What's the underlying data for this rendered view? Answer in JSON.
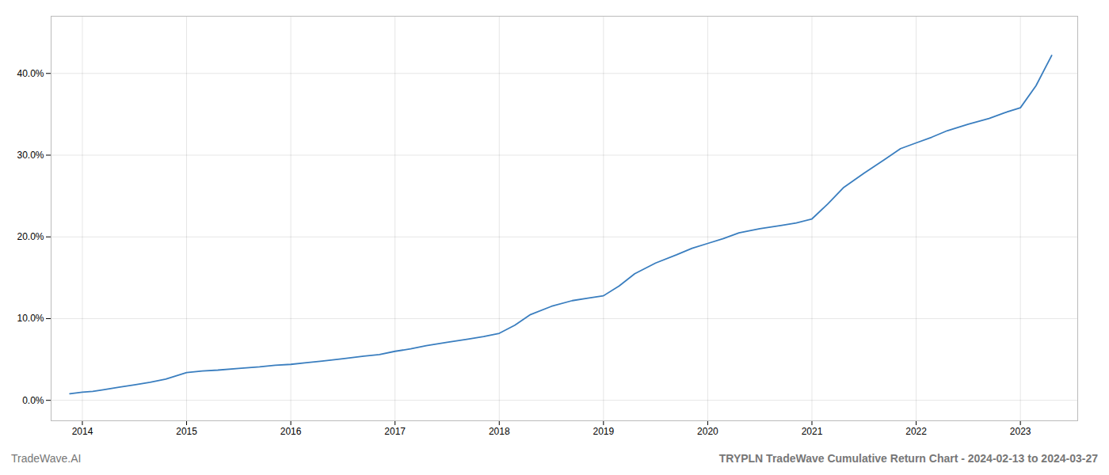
{
  "chart_data": {
    "type": "line",
    "title": "TRYPLN TradeWave Cumulative Return Chart - 2024-02-13 to 2024-03-27",
    "subtitle": "TradeWave.AI",
    "color": "#3a7ebf",
    "grid": true,
    "x": [
      2013.88,
      2014.0,
      2014.1,
      2014.2,
      2014.35,
      2014.5,
      2014.65,
      2014.8,
      2015.0,
      2015.15,
      2015.3,
      2015.5,
      2015.7,
      2015.85,
      2016.0,
      2016.15,
      2016.3,
      2016.5,
      2016.7,
      2016.85,
      2017.0,
      2017.15,
      2017.3,
      2017.5,
      2017.7,
      2017.85,
      2018.0,
      2018.15,
      2018.3,
      2018.5,
      2018.7,
      2018.85,
      2019.0,
      2019.15,
      2019.3,
      2019.5,
      2019.7,
      2019.85,
      2020.0,
      2020.15,
      2020.3,
      2020.5,
      2020.7,
      2020.85,
      2021.0,
      2021.15,
      2021.3,
      2021.5,
      2021.7,
      2021.85,
      2022.0,
      2022.15,
      2022.3,
      2022.5,
      2022.7,
      2022.85,
      2023.0,
      2023.15,
      2023.3
    ],
    "values": [
      0.008,
      0.01,
      0.011,
      0.013,
      0.016,
      0.019,
      0.022,
      0.026,
      0.034,
      0.036,
      0.037,
      0.039,
      0.041,
      0.043,
      0.044,
      0.046,
      0.048,
      0.051,
      0.054,
      0.056,
      0.06,
      0.063,
      0.067,
      0.071,
      0.075,
      0.078,
      0.082,
      0.092,
      0.105,
      0.115,
      0.122,
      0.125,
      0.128,
      0.14,
      0.155,
      0.168,
      0.178,
      0.186,
      0.192,
      0.198,
      0.205,
      0.21,
      0.214,
      0.217,
      0.222,
      0.24,
      0.26,
      0.278,
      0.295,
      0.308,
      0.315,
      0.322,
      0.33,
      0.338,
      0.345,
      0.352,
      0.358,
      0.385,
      0.422
    ],
    "xlim": [
      2013.7,
      2023.55
    ],
    "xticks": [
      2014,
      2015,
      2016,
      2017,
      2018,
      2019,
      2020,
      2021,
      2022,
      2023
    ],
    "ylim": [
      -0.025,
      0.47
    ],
    "yticks": [
      {
        "value": 0.0,
        "label": "0.0%"
      },
      {
        "value": 0.1,
        "label": "10.0%"
      },
      {
        "value": 0.2,
        "label": "20.0%"
      },
      {
        "value": 0.3,
        "label": "30.0%"
      },
      {
        "value": 0.4,
        "label": "40.0%"
      }
    ]
  }
}
